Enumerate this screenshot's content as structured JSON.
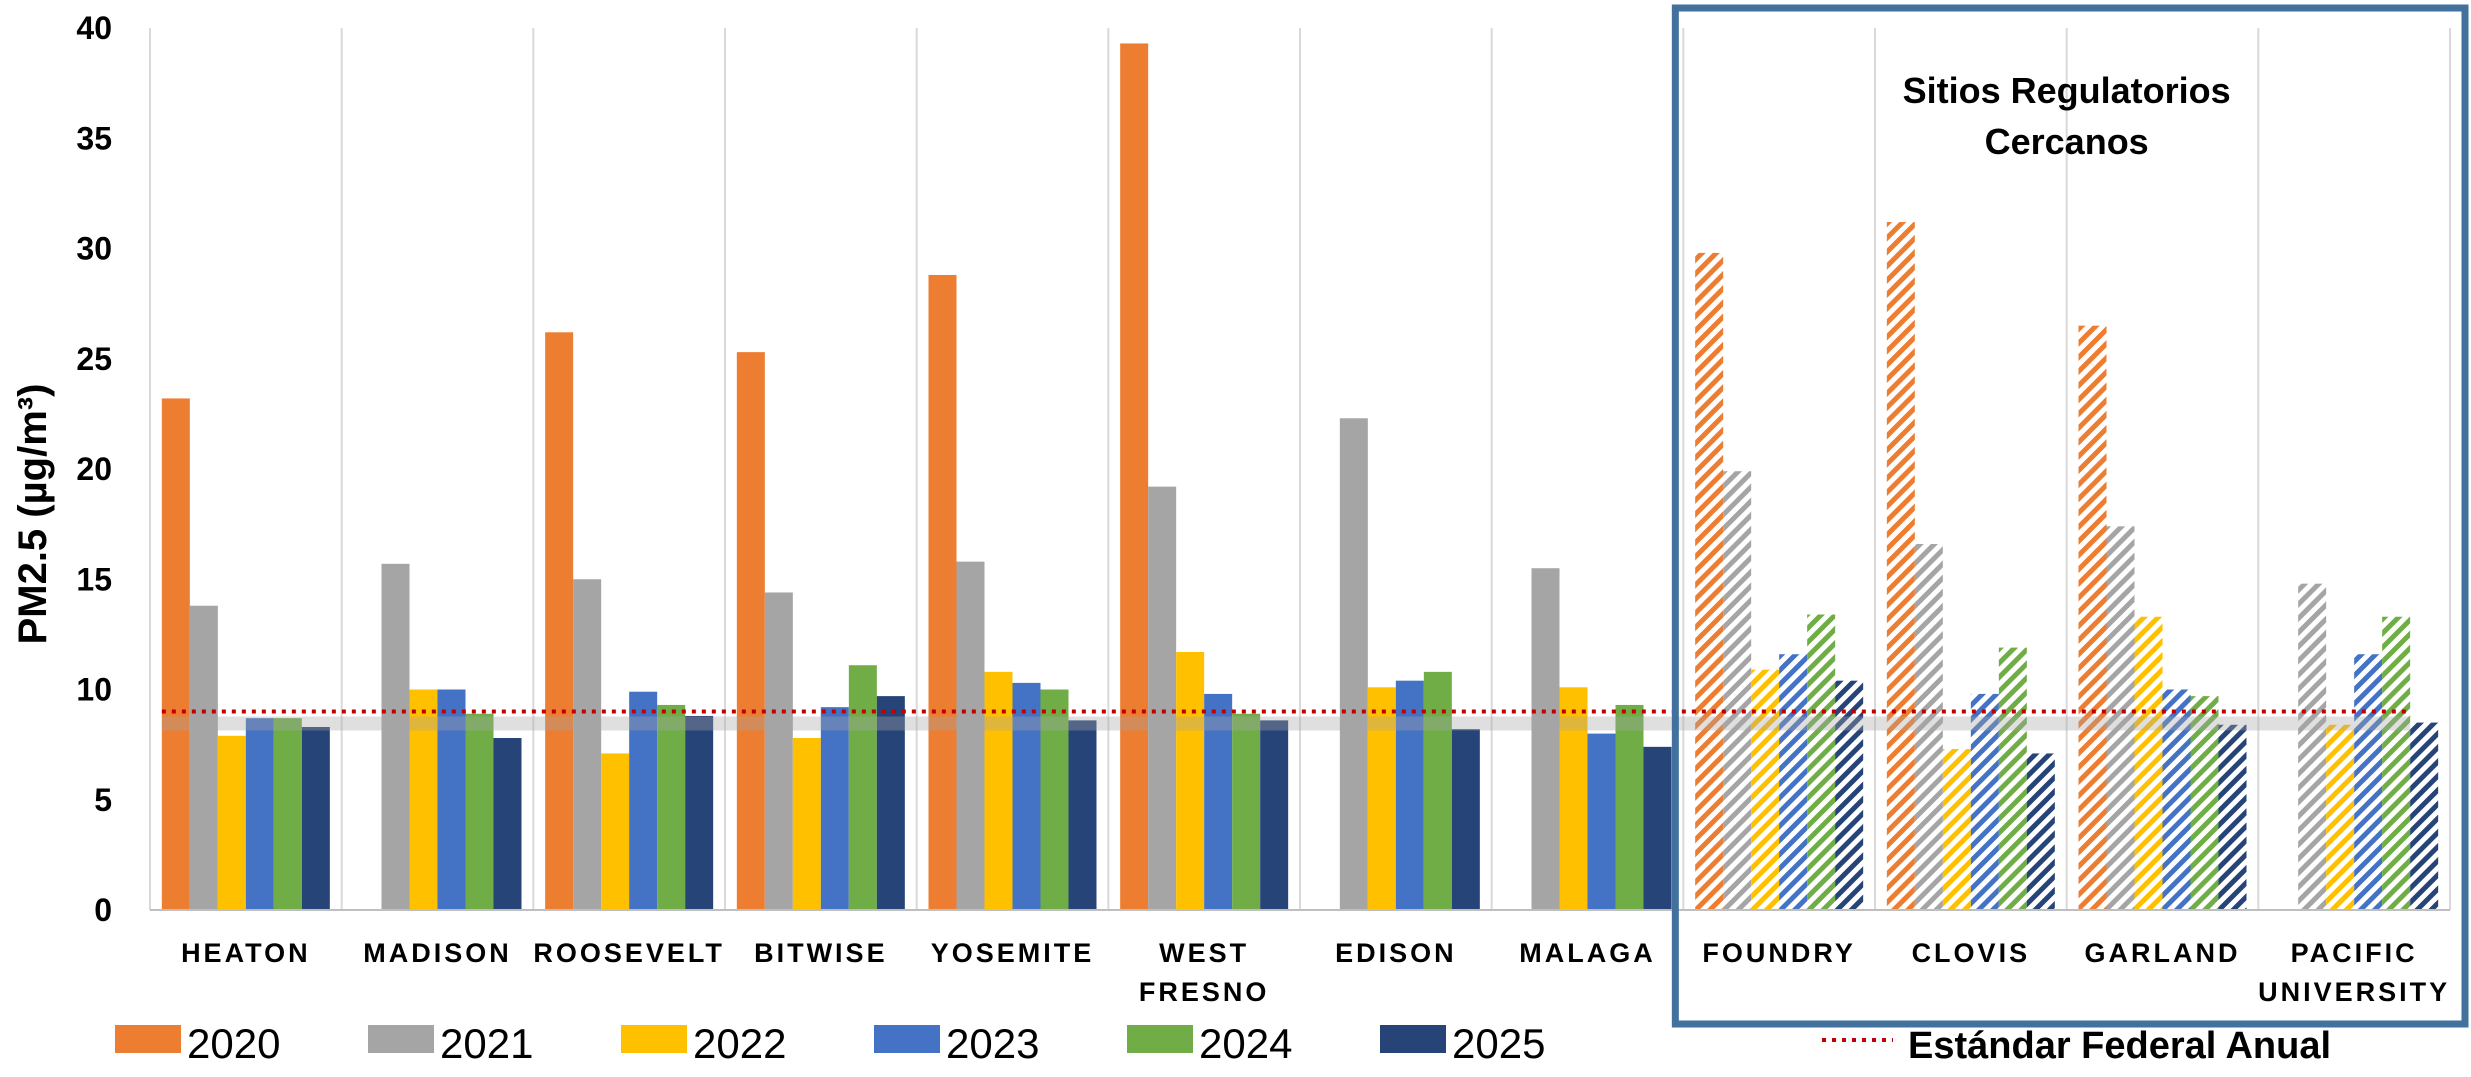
{
  "chart_data": {
    "type": "bar",
    "ylabel": "PM2.5 (µg/m³)",
    "xlabel": "",
    "ylim": [
      0,
      40
    ],
    "yticks": [
      0,
      5,
      10,
      15,
      20,
      25,
      30,
      35,
      40
    ],
    "grid": "vertical separators between categories",
    "categories": [
      [
        "HEATON"
      ],
      [
        "MADISON"
      ],
      [
        "ROOSEVELT"
      ],
      [
        "BITWISE"
      ],
      [
        "YOSEMITE"
      ],
      [
        "WEST",
        "FRESNO"
      ],
      [
        "EDISON"
      ],
      [
        "MALAGA"
      ],
      [
        "FOUNDRY"
      ],
      [
        "CLOVIS"
      ],
      [
        "GARLAND"
      ],
      [
        "PACIFIC",
        "UNIVERSITY"
      ]
    ],
    "regulatory_sites": [
      "FOUNDRY",
      "CLOVIS",
      "GARLAND",
      "PACIFIC UNIVERSITY"
    ],
    "regulatory_box_label": [
      "Sitios Regulatorios",
      "Cercanos"
    ],
    "series": [
      {
        "name": "2020",
        "color": "#ED7D31",
        "values": [
          23.2,
          null,
          26.2,
          25.3,
          28.8,
          39.3,
          null,
          null,
          29.8,
          31.2,
          26.5,
          null
        ]
      },
      {
        "name": "2021",
        "color": "#A5A5A5",
        "values": [
          13.8,
          15.7,
          15.0,
          14.4,
          15.8,
          19.2,
          22.3,
          15.5,
          19.9,
          16.6,
          17.4,
          14.8
        ]
      },
      {
        "name": "2022",
        "color": "#FFC000",
        "values": [
          7.9,
          10.0,
          7.1,
          7.8,
          10.8,
          11.7,
          10.1,
          10.1,
          10.9,
          7.3,
          13.3,
          8.4
        ]
      },
      {
        "name": "2023",
        "color": "#4472C4",
        "values": [
          8.7,
          10.0,
          9.9,
          9.2,
          10.3,
          9.8,
          10.4,
          8.0,
          11.6,
          9.8,
          10.0,
          11.6
        ]
      },
      {
        "name": "2024",
        "color": "#70AD47",
        "values": [
          8.7,
          8.9,
          9.3,
          11.1,
          10.0,
          8.9,
          10.8,
          9.3,
          13.4,
          11.9,
          9.7,
          13.3
        ]
      },
      {
        "name": "2025",
        "color": "#264478",
        "values": [
          8.3,
          7.8,
          8.8,
          9.7,
          8.6,
          8.6,
          8.2,
          7.4,
          10.4,
          7.1,
          8.4,
          8.5
        ]
      }
    ],
    "reference_line": {
      "name": "Estándar Federal Anual",
      "value": 9,
      "color": "#C00000",
      "style": "dotted"
    },
    "legend": "bottom"
  }
}
